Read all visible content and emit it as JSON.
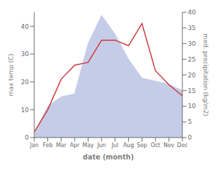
{
  "chart_data": {
    "type": "line",
    "xlabel": "date (month)",
    "ylabel": "max temp (C)",
    "y2label": "med. precipitation (kg/m2)",
    "categories": [
      "Jan",
      "Feb",
      "Mar",
      "Apr",
      "May",
      "Jun",
      "Jul",
      "Aug",
      "Sep",
      "Oct",
      "Nov",
      "Dec"
    ],
    "series": [
      {
        "type": "area",
        "color": "#c5cce8",
        "axis": "y2",
        "values": [
          1,
          10,
          13,
          14,
          30,
          39,
          33,
          25,
          19,
          18,
          17,
          15
        ]
      },
      {
        "type": "line",
        "color": "#cc3333",
        "values": [
          2,
          10,
          21,
          26,
          27,
          35,
          35,
          33,
          41,
          24,
          19,
          15
        ]
      }
    ],
    "ylim": [
      0,
      45
    ],
    "yticks": [
      0,
      10,
      20,
      30,
      40
    ],
    "y2lim": [
      0,
      40
    ],
    "y2ticks": [
      0,
      5,
      10,
      15,
      20,
      25,
      30,
      35,
      40
    ],
    "grid": false
  }
}
